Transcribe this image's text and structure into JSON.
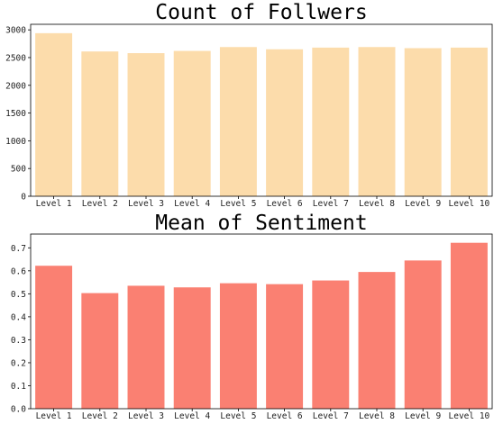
{
  "chart_data": [
    {
      "type": "bar",
      "title": "Count of Follwers",
      "xlabel": "",
      "ylabel": "",
      "categories": [
        "Level 1",
        "Level 2",
        "Level 3",
        "Level 4",
        "Level 5",
        "Level 6",
        "Level 7",
        "Level 8",
        "Level 9",
        "Level 10"
      ],
      "values": [
        2940,
        2610,
        2580,
        2620,
        2690,
        2650,
        2680,
        2690,
        2670,
        2680
      ],
      "ylim": [
        0,
        3100
      ],
      "yticks": [
        0,
        500,
        1000,
        1500,
        2000,
        2500,
        3000
      ],
      "ytick_labels": [
        "0",
        "500",
        "1000",
        "1500",
        "2000",
        "2500",
        "3000"
      ],
      "grid": false,
      "color": "#FCDCAB"
    },
    {
      "type": "bar",
      "title": "Mean of Sentiment",
      "xlabel": "",
      "ylabel": "",
      "categories": [
        "Level 1",
        "Level 2",
        "Level 3",
        "Level 4",
        "Level 5",
        "Level 6",
        "Level 7",
        "Level 8",
        "Level 9",
        "Level 10"
      ],
      "values": [
        0.622,
        0.503,
        0.535,
        0.528,
        0.546,
        0.542,
        0.558,
        0.595,
        0.645,
        0.722
      ],
      "ylim": [
        0,
        0.76
      ],
      "yticks": [
        0.0,
        0.1,
        0.2,
        0.3,
        0.4,
        0.5,
        0.6,
        0.7
      ],
      "ytick_labels": [
        "0.0",
        "0.1",
        "0.2",
        "0.3",
        "0.4",
        "0.5",
        "0.6",
        "0.7"
      ],
      "grid": false,
      "color": "#FA8072"
    }
  ]
}
